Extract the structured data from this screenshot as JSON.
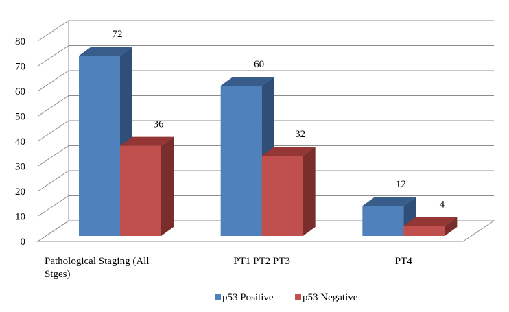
{
  "chart_data": {
    "type": "bar",
    "style": "3d-clustered-column",
    "categories": [
      [
        "Pathological Staging (All",
        "Stges)"
      ],
      [
        "PT1 PT2 PT3"
      ],
      [
        "PT4"
      ]
    ],
    "series": [
      {
        "name": "p53 Positive",
        "values": [
          72,
          60,
          12
        ],
        "color": "#4f81bd",
        "side_color": "#2f4f78",
        "top_color": "#385d8a"
      },
      {
        "name": "p53 Negative",
        "values": [
          36,
          32,
          4
        ],
        "color": "#c0504d",
        "side_color": "#7a2e2c",
        "top_color": "#943634"
      }
    ],
    "data_labels": [
      [
        "72",
        "60",
        "12"
      ],
      [
        "36",
        "32",
        "4"
      ]
    ],
    "ylim": [
      0,
      80
    ],
    "yticks": [
      "0",
      "10",
      "20",
      "30",
      "40",
      "50",
      "60",
      "70",
      "80"
    ],
    "grid": true,
    "legend_position": "bottom",
    "title": "",
    "xlabel": "",
    "ylabel": ""
  }
}
